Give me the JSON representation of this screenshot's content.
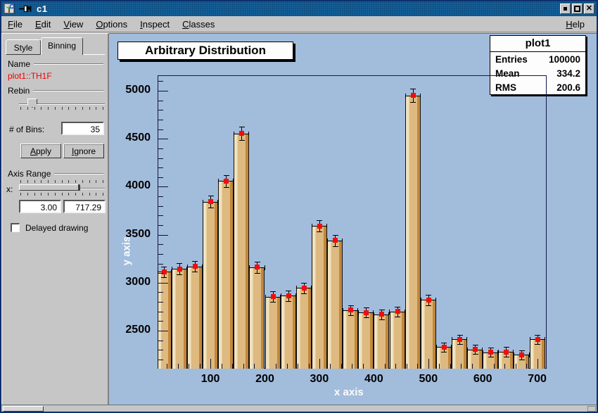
{
  "window": {
    "title": "c1"
  },
  "menu": {
    "items": [
      "File",
      "Edit",
      "View",
      "Options",
      "Inspect",
      "Classes"
    ],
    "right_item": "Help"
  },
  "editor_panel": {
    "tabs": [
      {
        "label": "Style",
        "active": false
      },
      {
        "label": "Binning",
        "active": true
      }
    ],
    "name_section_label": "Name",
    "histogram_name": "plot1::TH1F",
    "rebin_label": "Rebin",
    "bins_label": "# of Bins:",
    "bins_value": "35",
    "apply_label": "Apply",
    "ignore_label": "Ignore",
    "axis_range_label": "Axis Range",
    "axis_letter": "x:",
    "axis_min_value": "3.00",
    "axis_max_value": "717.29",
    "delayed_drawing_label": "Delayed drawing",
    "delayed_drawing_checked": false
  },
  "stats_box": {
    "title": "plot1",
    "rows": [
      [
        "Entries",
        "100000"
      ],
      [
        "Mean",
        "334.2"
      ],
      [
        "RMS",
        "200.6"
      ]
    ]
  },
  "chart_data": {
    "type": "bar",
    "title": "Arbitrary Distribution",
    "xlabel": "x axis",
    "ylabel": "y axis",
    "x_view_range": [
      3.0,
      717.29
    ],
    "y_view_range": [
      2104,
      5160
    ],
    "x_ticks": [
      100,
      200,
      300,
      400,
      500,
      600,
      700
    ],
    "y_ticks": [
      2500,
      3000,
      3500,
      4000,
      4500,
      5000
    ],
    "x_minor_step": 20,
    "y_minor_step": 100,
    "bin_width": 28.5714,
    "bin_centers": [
      14.29,
      42.86,
      71.43,
      100,
      128.57,
      157.14,
      185.71,
      214.29,
      242.86,
      271.43,
      300,
      328.57,
      357.14,
      385.71,
      414.29,
      442.86,
      471.43,
      500,
      528.57,
      557.14,
      585.71,
      614.29,
      642.86,
      671.43,
      700
    ],
    "values": [
      3115,
      3145,
      3170,
      3845,
      4060,
      4555,
      3160,
      2855,
      2865,
      2945,
      3590,
      3440,
      2715,
      2690,
      2670,
      2700,
      4950,
      2820,
      2330,
      2410,
      2305,
      2275,
      2280,
      2250,
      2410
    ],
    "entries": 100000,
    "mean": 334.2,
    "rms": 200.6,
    "marker_color": "#f20d0d",
    "bar_colors": {
      "light": "#f0e2c0",
      "mid": "#deba80",
      "dark": "#c1873c"
    },
    "background_color": "#a2bcdc",
    "legend_position": "none",
    "grid": false
  }
}
